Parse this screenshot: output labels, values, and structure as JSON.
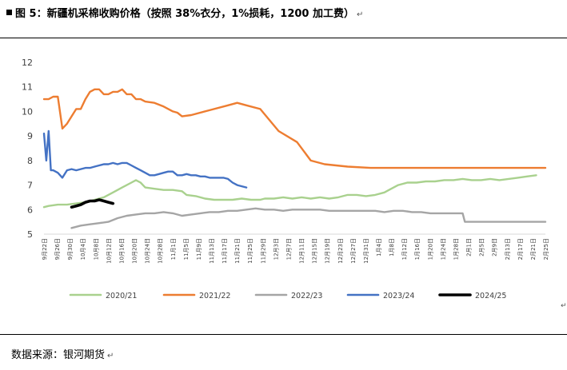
{
  "header": {
    "title": "图 5：新疆机采棉收购价格（按照 38%衣分，1%损耗，1200 加工费）",
    "para_mark": "↵"
  },
  "footer": {
    "source": "数据来源：银河期货",
    "para_mark": "↵"
  },
  "colors": {
    "2020/21": "#a9d18e",
    "2021/22": "#ed7d31",
    "2022/23": "#a5a5a5",
    "2023/24": "#4472c4",
    "2024/25": "#000000"
  },
  "chart_data": {
    "type": "line",
    "title": "",
    "xlabel": "",
    "ylabel": "",
    "ylim": [
      5,
      12
    ],
    "yticks": [
      5,
      6,
      7,
      8,
      9,
      10,
      11,
      12
    ],
    "x_tick_labels": [
      "9月22日",
      "9月26日",
      "9月30日",
      "10月4日",
      "10月8日",
      "10月12日",
      "10月16日",
      "10月20日",
      "10月24日",
      "10月28日",
      "11月1日",
      "11月5日",
      "11月9日",
      "11月13日",
      "11月17日",
      "11月21日",
      "11月25日",
      "11月29日",
      "12月3日",
      "12月7日",
      "12月11日",
      "12月15日",
      "12月19日",
      "12月23日",
      "12月27日",
      "12月31日",
      "1月4日",
      "1月8日",
      "1月12日",
      "1月16日",
      "1月20日",
      "1月24日",
      "1月28日",
      "2月1日",
      "2月5日",
      "2月9日",
      "2月13日",
      "2月17日",
      "2月21日",
      "2月25日"
    ],
    "grid": false,
    "legend_position": "bottom",
    "series": [
      {
        "name": "2020/21",
        "color": "#a9d18e",
        "points": [
          [
            0,
            6.1
          ],
          [
            1,
            6.15
          ],
          [
            3,
            6.2
          ],
          [
            5,
            6.2
          ],
          [
            7,
            6.25
          ],
          [
            9,
            6.3
          ],
          [
            11,
            6.4
          ],
          [
            13,
            6.5
          ],
          [
            15,
            6.7
          ],
          [
            17,
            6.9
          ],
          [
            19,
            7.1
          ],
          [
            20,
            7.2
          ],
          [
            21,
            7.1
          ],
          [
            22,
            6.9
          ],
          [
            24,
            6.85
          ],
          [
            26,
            6.8
          ],
          [
            28,
            6.8
          ],
          [
            30,
            6.75
          ],
          [
            31,
            6.6
          ],
          [
            33,
            6.55
          ],
          [
            35,
            6.45
          ],
          [
            37,
            6.4
          ],
          [
            39,
            6.4
          ],
          [
            41,
            6.4
          ],
          [
            43,
            6.45
          ],
          [
            45,
            6.4
          ],
          [
            47,
            6.4
          ],
          [
            48,
            6.45
          ],
          [
            50,
            6.45
          ],
          [
            52,
            6.5
          ],
          [
            54,
            6.45
          ],
          [
            56,
            6.5
          ],
          [
            58,
            6.45
          ],
          [
            60,
            6.5
          ],
          [
            62,
            6.45
          ],
          [
            64,
            6.5
          ],
          [
            66,
            6.6
          ],
          [
            68,
            6.6
          ],
          [
            70,
            6.55
          ],
          [
            72,
            6.6
          ],
          [
            74,
            6.7
          ],
          [
            75,
            6.8
          ],
          [
            77,
            7.0
          ],
          [
            79,
            7.1
          ],
          [
            81,
            7.1
          ],
          [
            83,
            7.15
          ],
          [
            85,
            7.15
          ],
          [
            87,
            7.2
          ],
          [
            89,
            7.2
          ],
          [
            91,
            7.25
          ],
          [
            93,
            7.2
          ],
          [
            95,
            7.2
          ],
          [
            97,
            7.25
          ],
          [
            99,
            7.2
          ],
          [
            101,
            7.25
          ],
          [
            103,
            7.3
          ],
          [
            105,
            7.35
          ],
          [
            107,
            7.4
          ]
        ]
      },
      {
        "name": "2021/22",
        "color": "#ed7d31",
        "points": [
          [
            0,
            10.5
          ],
          [
            1,
            10.5
          ],
          [
            2,
            10.6
          ],
          [
            3,
            10.6
          ],
          [
            4,
            9.3
          ],
          [
            5,
            9.5
          ],
          [
            6,
            9.8
          ],
          [
            7,
            10.1
          ],
          [
            8,
            10.1
          ],
          [
            9,
            10.5
          ],
          [
            10,
            10.8
          ],
          [
            11,
            10.9
          ],
          [
            12,
            10.9
          ],
          [
            13,
            10.7
          ],
          [
            14,
            10.7
          ],
          [
            15,
            10.8
          ],
          [
            16,
            10.8
          ],
          [
            17,
            10.9
          ],
          [
            18,
            10.7
          ],
          [
            19,
            10.7
          ],
          [
            20,
            10.5
          ],
          [
            21,
            10.5
          ],
          [
            22,
            10.4
          ],
          [
            24,
            10.35
          ],
          [
            26,
            10.2
          ],
          [
            28,
            10.0
          ],
          [
            29,
            9.95
          ],
          [
            30,
            9.8
          ],
          [
            32,
            9.85
          ],
          [
            36,
            10.05
          ],
          [
            40,
            10.25
          ],
          [
            42,
            10.35
          ],
          [
            44,
            10.25
          ],
          [
            47,
            10.1
          ],
          [
            51,
            9.2
          ],
          [
            55,
            8.75
          ],
          [
            58,
            8.0
          ],
          [
            61,
            7.85
          ],
          [
            66,
            7.75
          ],
          [
            71,
            7.7
          ],
          [
            77,
            7.7
          ],
          [
            109,
            7.7
          ]
        ]
      },
      {
        "name": "2022/23",
        "color": "#a5a5a5",
        "points": [
          [
            6,
            5.25
          ],
          [
            7,
            5.3
          ],
          [
            8,
            5.35
          ],
          [
            10,
            5.4
          ],
          [
            12,
            5.45
          ],
          [
            14,
            5.5
          ],
          [
            16,
            5.65
          ],
          [
            18,
            5.75
          ],
          [
            20,
            5.8
          ],
          [
            22,
            5.85
          ],
          [
            24,
            5.85
          ],
          [
            26,
            5.9
          ],
          [
            28,
            5.85
          ],
          [
            30,
            5.75
          ],
          [
            32,
            5.8
          ],
          [
            34,
            5.85
          ],
          [
            36,
            5.9
          ],
          [
            38,
            5.9
          ],
          [
            40,
            5.95
          ],
          [
            42,
            5.95
          ],
          [
            44,
            6.0
          ],
          [
            46,
            6.05
          ],
          [
            48,
            6.0
          ],
          [
            50,
            6.0
          ],
          [
            52,
            5.95
          ],
          [
            54,
            6.0
          ],
          [
            56,
            6.0
          ],
          [
            58,
            6.0
          ],
          [
            60,
            6.0
          ],
          [
            62,
            5.95
          ],
          [
            64,
            5.95
          ],
          [
            66,
            5.95
          ],
          [
            68,
            5.95
          ],
          [
            70,
            5.95
          ],
          [
            72,
            5.95
          ],
          [
            74,
            5.9
          ],
          [
            76,
            5.95
          ],
          [
            78,
            5.95
          ],
          [
            80,
            5.9
          ],
          [
            82,
            5.9
          ],
          [
            84,
            5.85
          ],
          [
            86,
            5.85
          ],
          [
            88,
            5.85
          ],
          [
            90,
            5.85
          ],
          [
            91,
            5.85
          ],
          [
            91.5,
            5.5
          ],
          [
            109,
            5.5
          ]
        ]
      },
      {
        "name": "2023/24",
        "color": "#4472c4",
        "points": [
          [
            0,
            9.1
          ],
          [
            0.5,
            8.0
          ],
          [
            1,
            9.2
          ],
          [
            1.5,
            7.6
          ],
          [
            2,
            7.6
          ],
          [
            3,
            7.5
          ],
          [
            4,
            7.3
          ],
          [
            5,
            7.6
          ],
          [
            6,
            7.65
          ],
          [
            7,
            7.6
          ],
          [
            8,
            7.65
          ],
          [
            9,
            7.7
          ],
          [
            10,
            7.7
          ],
          [
            11,
            7.75
          ],
          [
            12,
            7.8
          ],
          [
            13,
            7.85
          ],
          [
            14,
            7.85
          ],
          [
            15,
            7.9
          ],
          [
            16,
            7.85
          ],
          [
            17,
            7.9
          ],
          [
            18,
            7.9
          ],
          [
            19,
            7.8
          ],
          [
            20,
            7.7
          ],
          [
            21,
            7.6
          ],
          [
            22,
            7.5
          ],
          [
            23,
            7.4
          ],
          [
            24,
            7.4
          ],
          [
            25,
            7.45
          ],
          [
            26,
            7.5
          ],
          [
            27,
            7.55
          ],
          [
            28,
            7.55
          ],
          [
            29,
            7.4
          ],
          [
            30,
            7.4
          ],
          [
            31,
            7.45
          ],
          [
            32,
            7.4
          ],
          [
            33,
            7.4
          ],
          [
            34,
            7.35
          ],
          [
            35,
            7.35
          ],
          [
            36,
            7.3
          ],
          [
            37,
            7.3
          ],
          [
            38,
            7.3
          ],
          [
            39,
            7.3
          ],
          [
            40,
            7.25
          ],
          [
            41,
            7.1
          ],
          [
            42,
            7.0
          ],
          [
            43,
            6.95
          ],
          [
            44,
            6.9
          ]
        ]
      },
      {
        "name": "2024/25",
        "color": "#000000",
        "points": [
          [
            6,
            6.1
          ],
          [
            7,
            6.15
          ],
          [
            8,
            6.2
          ],
          [
            9,
            6.3
          ],
          [
            10,
            6.35
          ],
          [
            11,
            6.35
          ],
          [
            12,
            6.4
          ],
          [
            13,
            6.35
          ],
          [
            14,
            6.3
          ],
          [
            15,
            6.25
          ]
        ]
      }
    ]
  }
}
